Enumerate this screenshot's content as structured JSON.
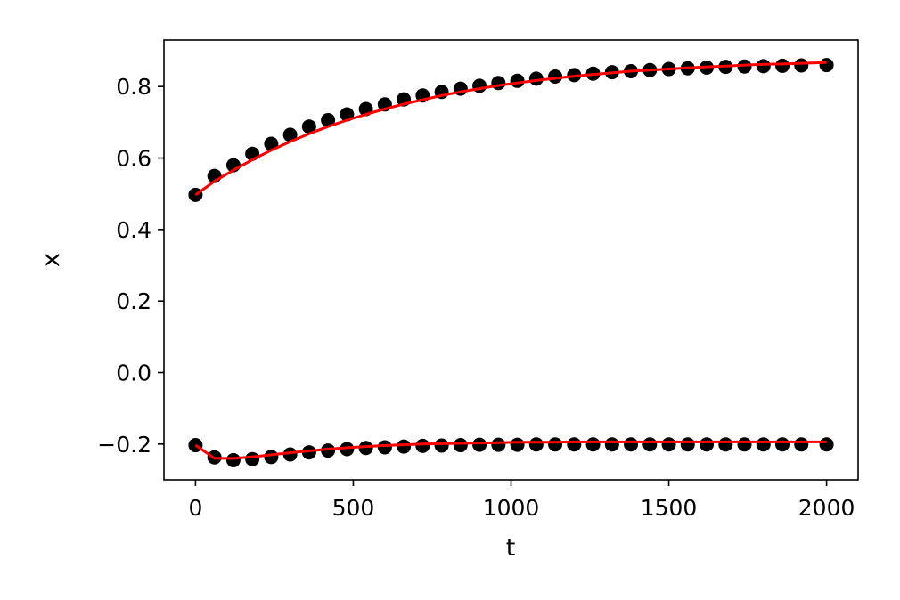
{
  "chart_data": {
    "type": "scatter",
    "xlabel": "t",
    "ylabel": "x",
    "xlim": [
      -100,
      2100
    ],
    "ylim": [
      -0.3,
      0.93
    ],
    "x_ticks": [
      0,
      500,
      1000,
      1500,
      2000
    ],
    "x_tick_labels": [
      "0",
      "500",
      "1000",
      "1500",
      "2000"
    ],
    "y_ticks": [
      -0.2,
      0.0,
      0.2,
      0.4,
      0.6,
      0.8
    ],
    "y_tick_labels": [
      "−0.2",
      "0.0",
      "0.2",
      "0.4",
      "0.6",
      "0.8"
    ],
    "grid": false,
    "legend": "none",
    "colors": {
      "points": "#000000",
      "fit_line": "#ff0000"
    },
    "x": [
      0,
      60,
      120,
      180,
      240,
      300,
      360,
      420,
      480,
      540,
      600,
      660,
      720,
      780,
      840,
      900,
      960,
      1020,
      1080,
      1140,
      1200,
      1260,
      1320,
      1380,
      1440,
      1500,
      1560,
      1620,
      1680,
      1740,
      1800,
      1860,
      1920,
      2000
    ],
    "series": [
      {
        "kind": "points",
        "values": [
          0.497,
          0.55,
          0.58,
          0.612,
          0.64,
          0.665,
          0.688,
          0.706,
          0.722,
          0.737,
          0.75,
          0.764,
          0.775,
          0.785,
          0.794,
          0.802,
          0.81,
          0.816,
          0.822,
          0.828,
          0.832,
          0.836,
          0.84,
          0.843,
          0.846,
          0.849,
          0.851,
          0.853,
          0.855,
          0.856,
          0.857,
          0.858,
          0.859,
          0.86
        ]
      },
      {
        "kind": "points",
        "values": [
          -0.203,
          -0.237,
          -0.245,
          -0.242,
          -0.236,
          -0.229,
          -0.223,
          -0.218,
          -0.214,
          -0.211,
          -0.209,
          -0.207,
          -0.205,
          -0.204,
          -0.203,
          -0.202,
          -0.202,
          -0.202,
          -0.201,
          -0.201,
          -0.201,
          -0.201,
          -0.201,
          -0.201,
          -0.201,
          -0.201,
          -0.201,
          -0.201,
          -0.201,
          -0.201,
          -0.201,
          -0.201,
          -0.201,
          -0.201
        ]
      },
      {
        "kind": "line",
        "values": [
          0.497,
          0.535,
          0.566,
          0.595,
          0.622,
          0.646,
          0.668,
          0.688,
          0.706,
          0.722,
          0.737,
          0.751,
          0.763,
          0.775,
          0.785,
          0.794,
          0.803,
          0.81,
          0.817,
          0.823,
          0.829,
          0.834,
          0.838,
          0.843,
          0.846,
          0.849,
          0.852,
          0.855,
          0.857,
          0.86,
          0.862,
          0.863,
          0.865,
          0.867
        ]
      },
      {
        "kind": "line",
        "values": [
          -0.203,
          -0.24,
          -0.24,
          -0.236,
          -0.23,
          -0.224,
          -0.219,
          -0.214,
          -0.21,
          -0.207,
          -0.204,
          -0.202,
          -0.2,
          -0.199,
          -0.198,
          -0.197,
          -0.196,
          -0.195,
          -0.195,
          -0.195,
          -0.194,
          -0.194,
          -0.194,
          -0.194,
          -0.194,
          -0.194,
          -0.194,
          -0.194,
          -0.194,
          -0.194,
          -0.194,
          -0.194,
          -0.194,
          -0.194
        ]
      }
    ]
  }
}
